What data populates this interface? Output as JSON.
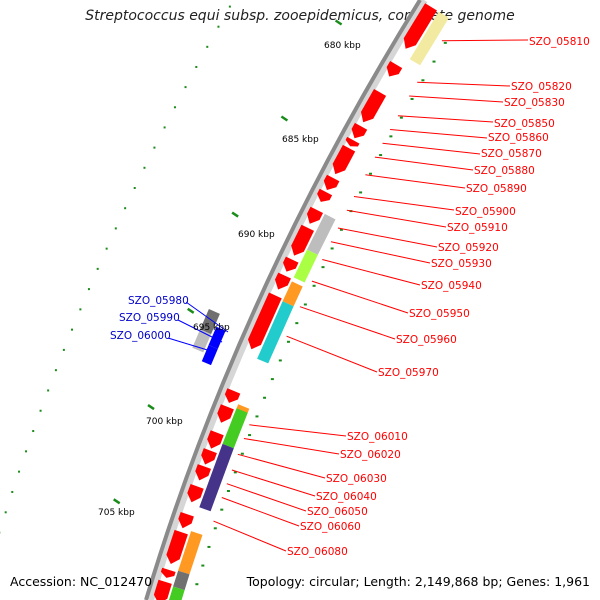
{
  "title": "Streptococcus equi subsp. zooepidemicus, complete genome",
  "footer": {
    "accession": "Accession: NC_012470",
    "summary": "Topology: circular; Length: 2,149,868 bp; Genes: 1,961"
  },
  "colors": {
    "forward_gene": "#ff0000",
    "reverse_gene": "#0000ff",
    "backbone": "#8a8a8a",
    "tick": "#1a8c1a",
    "label_red": "#ff0000",
    "label_blue": "#0000cc",
    "leader_red": "#ff0000",
    "leader_blue": "#0000ff",
    "cog_yellow": "#f2eaa0",
    "cog_grey": "#bdbdbd",
    "cog_lime": "#aaff44",
    "cog_orange": "#ff9922",
    "cog_cyan": "#22cccc",
    "cog_dgrey": "#707070",
    "cog_green": "#44cc22",
    "cog_purple": "#443388"
  },
  "kbp_labels": [
    "680 kbp",
    "685 kbp",
    "690 kbp",
    "695 kbp",
    "700 kbp",
    "705 kbp"
  ],
  "gene_labels_right": [
    "SZO_05810",
    "SZO_05820",
    "SZO_05830",
    "SZO_05850",
    "SZO_05860",
    "SZO_05870",
    "SZO_05880",
    "SZO_05890",
    "SZO_05900",
    "SZO_05910",
    "SZO_05920",
    "SZO_05930",
    "SZO_05940",
    "SZO_05950",
    "SZO_05960",
    "SZO_05970",
    "SZO_06010",
    "SZO_06020",
    "SZO_06030",
    "SZO_06040",
    "SZO_06050",
    "SZO_06060",
    "SZO_06080"
  ],
  "gene_labels_left": [
    "SZO_05980",
    "SZO_05990",
    "SZO_06000"
  ]
}
